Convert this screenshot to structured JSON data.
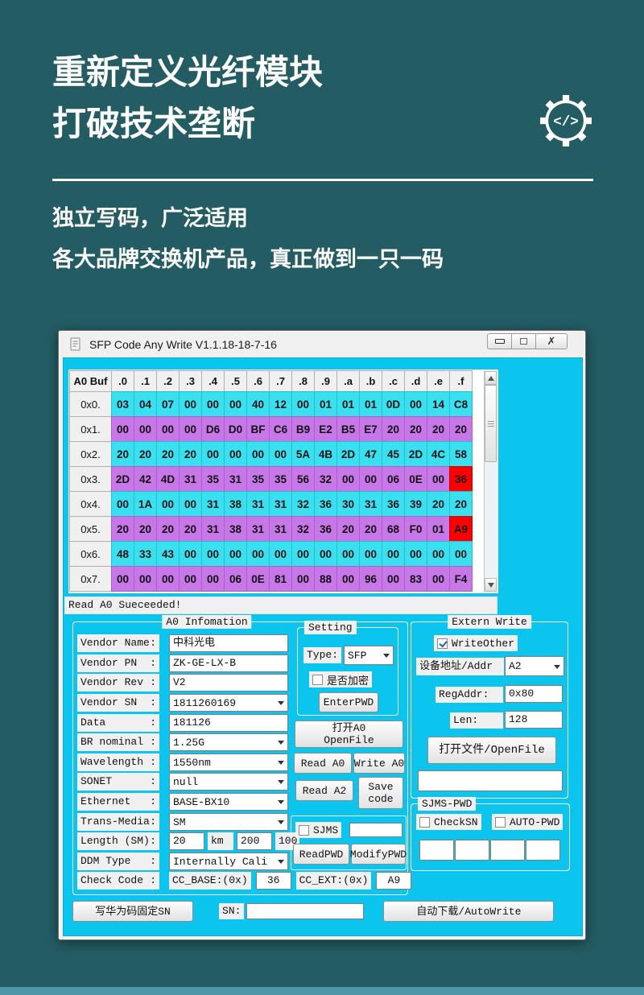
{
  "colors": {
    "page_bg": "#235c63",
    "accent_strip": "#4e97a8",
    "client_bg": "#0cc5ee",
    "row_cyan": "#39e1f0",
    "row_purple": "#c877e8",
    "cell_red": "#ff0000",
    "chip_bg": "#f0f0f0"
  },
  "promo": {
    "title1": "重新定义光纤模块",
    "title2": "打破技术垄断",
    "sub1": "独立写码，广泛适用",
    "sub2": "各大品牌交换机产品，真正做到一只一码",
    "gear_icon_code": "</>"
  },
  "window": {
    "title": "SFP Code Any Write V1.1.18-18-7-16"
  },
  "status": {
    "text": "Read A0 Sueceeded!"
  },
  "hex_table": {
    "corner": "A0 Buf",
    "cols": [
      ".0",
      ".1",
      ".2",
      ".3",
      ".4",
      ".5",
      ".6",
      ".7",
      ".8",
      ".9",
      ".a",
      ".b",
      ".c",
      ".d",
      ".e",
      ".f"
    ],
    "rows": [
      {
        "label": "0x0.",
        "cells": [
          "03",
          "04",
          "07",
          "00",
          "00",
          "00",
          "40",
          "12",
          "00",
          "01",
          "01",
          "01",
          "0D",
          "00",
          "14",
          "C8"
        ]
      },
      {
        "label": "0x1.",
        "cells": [
          "00",
          "00",
          "00",
          "00",
          "D6",
          "D0",
          "BF",
          "C6",
          "B9",
          "E2",
          "B5",
          "E7",
          "20",
          "20",
          "20",
          "20"
        ]
      },
      {
        "label": "0x2.",
        "cells": [
          "20",
          "20",
          "20",
          "20",
          "00",
          "00",
          "00",
          "00",
          "5A",
          "4B",
          "2D",
          "47",
          "45",
          "2D",
          "4C",
          "58"
        ]
      },
      {
        "label": "0x3.",
        "cells": [
          "2D",
          "42",
          "4D",
          "31",
          "35",
          "31",
          "35",
          "35",
          "56",
          "32",
          "00",
          "00",
          "06",
          "0E",
          "00",
          "36"
        ]
      },
      {
        "label": "0x4.",
        "cells": [
          "00",
          "1A",
          "00",
          "00",
          "31",
          "38",
          "31",
          "31",
          "32",
          "36",
          "30",
          "31",
          "36",
          "39",
          "20",
          "20"
        ]
      },
      {
        "label": "0x5.",
        "cells": [
          "20",
          "20",
          "20",
          "20",
          "31",
          "38",
          "31",
          "31",
          "32",
          "36",
          "20",
          "20",
          "68",
          "F0",
          "01",
          "A9"
        ]
      },
      {
        "label": "0x6.",
        "cells": [
          "48",
          "33",
          "43",
          "00",
          "00",
          "00",
          "00",
          "00",
          "00",
          "00",
          "00",
          "00",
          "00",
          "00",
          "00",
          "00"
        ]
      },
      {
        "label": "0x7.",
        "cells": [
          "00",
          "00",
          "00",
          "00",
          "00",
          "06",
          "0E",
          "81",
          "00",
          "88",
          "00",
          "96",
          "00",
          "83",
          "00",
          "F4"
        ]
      }
    ],
    "red_cells": [
      [
        3,
        15
      ],
      [
        5,
        15
      ]
    ]
  },
  "a0_info": {
    "title": "A0 Infomation",
    "fields": [
      {
        "label": "Vendor Name",
        "type": "text",
        "value": "中科光电"
      },
      {
        "label": "Vendor PN",
        "type": "text",
        "value": "ZK-GE-LX-B"
      },
      {
        "label": "Vendor Rev",
        "type": "text",
        "value": "V2"
      },
      {
        "label": "Vendor SN",
        "type": "combo",
        "value": "1811260169"
      },
      {
        "label": "Data",
        "type": "text",
        "value": "181126"
      },
      {
        "label": "BR nominal",
        "type": "combo",
        "value": "1.25G"
      },
      {
        "label": "Wavelength",
        "type": "combo",
        "value": "1550nm"
      },
      {
        "label": "SONET",
        "type": "combo",
        "value": "null"
      },
      {
        "label": "Ethernet",
        "type": "combo",
        "value": "BASE-BX10"
      },
      {
        "label": "Trans-Media",
        "type": "combo",
        "value": "SM"
      },
      {
        "label": "Length (SM)",
        "type": "length",
        "values": [
          "20",
          "km",
          "200",
          "100:"
        ]
      },
      {
        "label": "DDM Type",
        "type": "combo",
        "value": "Internally Cali"
      },
      {
        "label": "Check Code",
        "type": "checkcode",
        "parts": [
          "CC_BASE:(0x)",
          "36",
          "CC_EXT:(0x)",
          "A9"
        ]
      }
    ]
  },
  "setting": {
    "title": "Setting",
    "type_label": "Type:",
    "type_value": "SFP",
    "encrypt_label": "是否加密",
    "enter_pwd": "EnterPWD"
  },
  "actions": {
    "open_a0": "打开A0\nOpenFile",
    "read_a0": "Read A0",
    "write_a0": "Write A0",
    "read_a2": "Read A2",
    "save_code": "Save\ncode"
  },
  "sjms": {
    "label": "SJMS",
    "read_pwd": "ReadPWD",
    "modify_pwd": "ModifyPWD",
    "input_value": ""
  },
  "extern": {
    "title": "Extern Write",
    "write_other": "WriteOther",
    "addr_label": "设备地址/Addr",
    "addr_value": "A2",
    "reg_label": "RegAddr:",
    "reg_value": "0x80",
    "len_label": "Len:",
    "len_value": "128",
    "open_file": "打开文件/OpenFile",
    "file_value": ""
  },
  "sjms_pwd": {
    "title": "SJMS-PWD",
    "check_sn": "CheckSN",
    "auto_pwd": "AUTO-PWD",
    "boxes": [
      "",
      "",
      "",
      ""
    ]
  },
  "bottom": {
    "write_huawei": "写华为码固定SN",
    "sn_label": "SN:",
    "sn_value": "",
    "auto_write": "自动下载/AutoWrite"
  }
}
